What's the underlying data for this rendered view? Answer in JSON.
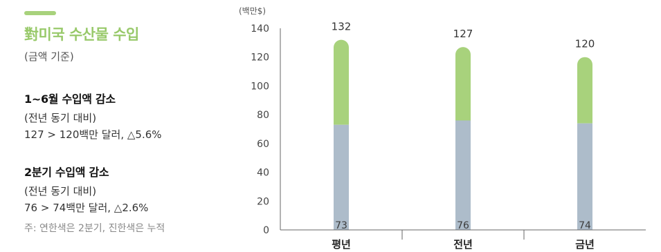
{
  "info": {
    "title": "對미국 수산물 수입",
    "subtitle": "(금액 기준)",
    "block1": {
      "heading": "1~6월 수입액 감소",
      "line1": "(전년 동기 대비)",
      "line2": "127 > 120백만 달러, △5.6%"
    },
    "block2": {
      "heading": "2분기 수입액 감소",
      "line1": "(전년 동기 대비)",
      "line2": "76 > 74백만 달러, △2.6%"
    },
    "note": "주: 연한색은 2분기, 진한색은 누적"
  },
  "colors": {
    "accent": "#a8d27c",
    "title": "#98c96a",
    "q2": "#adbcca",
    "cumulative": "#a8d27c"
  },
  "chart_data": {
    "type": "bar",
    "unit_label": "(백만$)",
    "categories": [
      "평년",
      "전년",
      "금년"
    ],
    "series": [
      {
        "values": [
          73,
          76,
          74
        ]
      },
      {
        "values": [
          132,
          127,
          120
        ]
      }
    ],
    "yticks": [
      "0",
      "20",
      "40",
      "60",
      "80",
      "100",
      "120",
      "140"
    ],
    "ylim": [
      0,
      140
    ],
    "grid": false
  }
}
